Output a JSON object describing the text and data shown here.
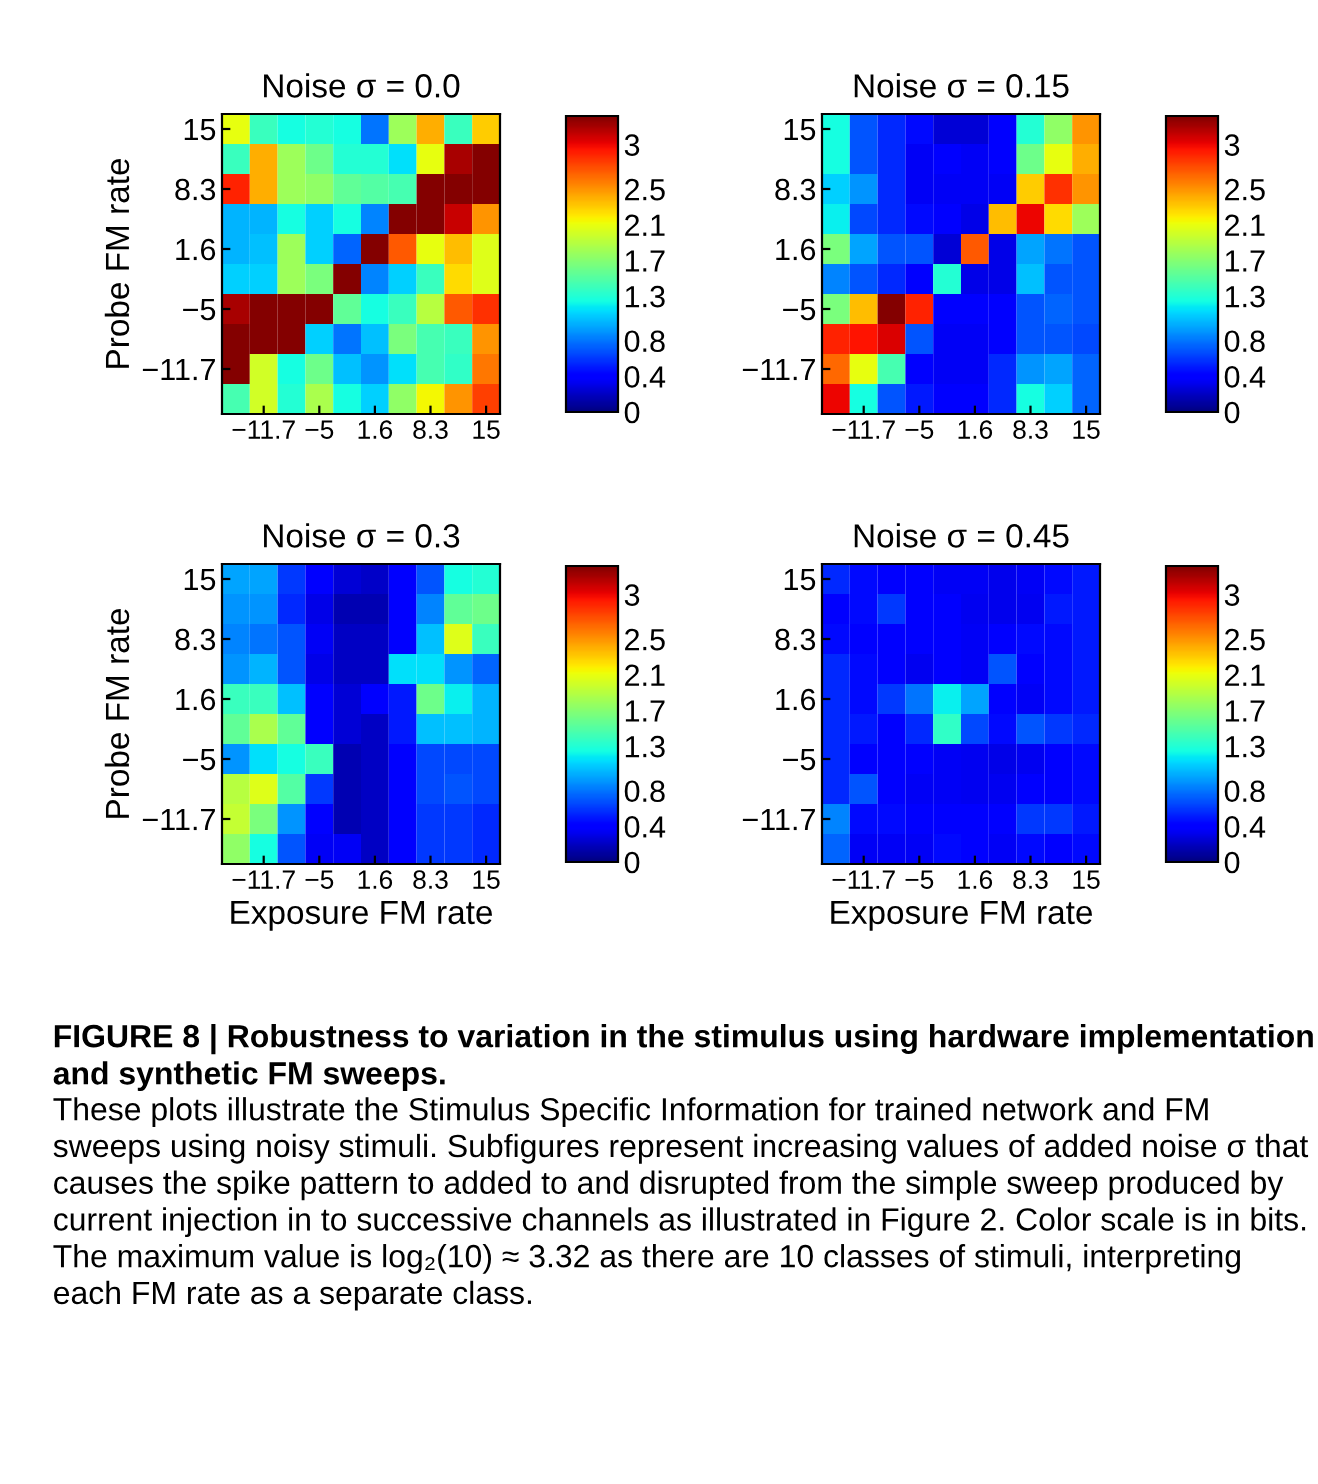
{
  "chart_data": [
    {
      "type": "heatmap",
      "title": "Noise σ = 0.0",
      "ylabel": "Probe FM rate",
      "categories": [
        null,
        "−11.7",
        null,
        "−5",
        null,
        "1.6",
        null,
        "8.3",
        null,
        "15"
      ],
      "y_categories": [
        "15",
        null,
        "8.3",
        null,
        "1.6",
        null,
        "−5",
        null,
        "−11.7",
        null
      ],
      "clim": [
        0,
        3.32
      ],
      "cticks": [
        0,
        0.4,
        0.8,
        1.3,
        1.7,
        2.1,
        2.5,
        3
      ],
      "cells": [
        [
          2.1,
          1.4,
          1.25,
          1.3,
          1.25,
          0.8,
          1.8,
          2.4,
          1.4,
          2.3
        ],
        [
          1.4,
          2.4,
          1.8,
          1.6,
          1.3,
          1.3,
          1.15,
          2.1,
          3.2,
          3.3
        ],
        [
          2.9,
          2.4,
          1.8,
          1.75,
          1.55,
          1.5,
          1.45,
          3.3,
          3.3,
          3.3
        ],
        [
          1.0,
          1.0,
          1.25,
          1.1,
          1.25,
          0.85,
          3.3,
          3.3,
          3.1,
          2.5
        ],
        [
          1.0,
          1.05,
          1.8,
          1.1,
          0.75,
          3.3,
          2.7,
          2.1,
          2.35,
          2.05
        ],
        [
          1.1,
          1.1,
          1.8,
          1.65,
          3.3,
          0.85,
          1.1,
          1.4,
          2.25,
          2.05
        ],
        [
          3.2,
          3.3,
          3.3,
          3.3,
          1.55,
          1.25,
          1.4,
          1.9,
          2.7,
          2.85
        ],
        [
          3.3,
          3.3,
          3.3,
          1.1,
          0.8,
          1.05,
          1.65,
          1.45,
          1.4,
          2.5
        ],
        [
          3.3,
          2.0,
          1.25,
          1.6,
          1.05,
          0.9,
          1.15,
          1.45,
          1.35,
          2.6
        ],
        [
          1.45,
          2.0,
          1.3,
          1.85,
          1.25,
          1.1,
          1.75,
          2.15,
          2.5,
          2.8
        ]
      ]
    },
    {
      "type": "heatmap",
      "title": "Noise σ = 0.15",
      "categories": [
        null,
        "−11.7",
        null,
        "−5",
        null,
        "1.6",
        null,
        "8.3",
        null,
        "15"
      ],
      "y_categories": [
        "15",
        null,
        "8.3",
        null,
        "1.6",
        null,
        "−5",
        null,
        "−11.7",
        null
      ],
      "clim": [
        0,
        3.32
      ],
      "cticks": [
        0,
        0.4,
        0.8,
        1.3,
        1.7,
        2.1,
        2.5,
        3
      ],
      "cells": [
        [
          1.25,
          0.7,
          0.55,
          0.45,
          0.25,
          0.25,
          0.4,
          1.3,
          1.75,
          2.5
        ],
        [
          1.25,
          0.7,
          0.55,
          0.35,
          0.4,
          0.35,
          0.38,
          1.6,
          2.1,
          2.4
        ],
        [
          1.1,
          0.9,
          0.55,
          0.35,
          0.35,
          0.35,
          0.35,
          2.3,
          2.85,
          2.5
        ],
        [
          1.2,
          0.65,
          0.55,
          0.45,
          0.38,
          0.3,
          2.35,
          3.0,
          2.25,
          1.8
        ],
        [
          1.65,
          0.95,
          0.7,
          0.7,
          0.25,
          2.7,
          0.3,
          0.95,
          0.8,
          0.7
        ],
        [
          0.85,
          0.7,
          0.55,
          0.4,
          1.3,
          0.3,
          0.3,
          1.05,
          0.7,
          0.7
        ],
        [
          1.65,
          2.35,
          3.3,
          2.9,
          0.38,
          0.38,
          0.4,
          0.7,
          0.75,
          0.7
        ],
        [
          2.9,
          2.95,
          3.05,
          0.7,
          0.35,
          0.35,
          0.38,
          0.7,
          0.7,
          0.65
        ],
        [
          2.65,
          2.1,
          1.45,
          0.4,
          0.35,
          0.35,
          0.55,
          0.9,
          0.95,
          0.75
        ],
        [
          3.0,
          1.25,
          0.7,
          0.5,
          0.4,
          0.38,
          0.55,
          1.25,
          1.1,
          0.75
        ]
      ]
    },
    {
      "type": "heatmap",
      "title": "Noise σ = 0.3",
      "xlabel": "Exposure FM rate",
      "ylabel": "Probe FM rate",
      "categories": [
        null,
        "−11.7",
        null,
        "−5",
        null,
        "1.6",
        null,
        "8.3",
        null,
        "15"
      ],
      "y_categories": [
        "15",
        null,
        "8.3",
        null,
        "1.6",
        null,
        "−5",
        null,
        "−11.7",
        null
      ],
      "clim": [
        0,
        3.32
      ],
      "cticks": [
        0,
        0.4,
        0.8,
        1.3,
        1.7,
        2.1,
        2.5,
        3
      ],
      "cells": [
        [
          0.95,
          0.95,
          0.6,
          0.4,
          0.25,
          0.22,
          0.4,
          0.7,
          1.25,
          1.3
        ],
        [
          0.9,
          0.9,
          0.55,
          0.3,
          0.15,
          0.15,
          0.4,
          0.85,
          1.55,
          1.6
        ],
        [
          0.85,
          0.8,
          0.7,
          0.35,
          0.2,
          0.2,
          0.4,
          1.05,
          2.05,
          1.4
        ],
        [
          0.9,
          1.0,
          0.7,
          0.3,
          0.2,
          0.2,
          1.15,
          1.15,
          0.9,
          0.75
        ],
        [
          1.4,
          1.4,
          1.05,
          0.4,
          0.25,
          0.4,
          0.5,
          1.6,
          1.2,
          1.0
        ],
        [
          1.55,
          1.85,
          1.55,
          0.4,
          0.25,
          0.2,
          0.5,
          1.05,
          1.05,
          1.0
        ],
        [
          0.9,
          1.15,
          1.25,
          1.4,
          0.15,
          0.2,
          0.4,
          0.65,
          0.65,
          0.65
        ],
        [
          1.9,
          2.05,
          1.5,
          0.6,
          0.15,
          0.2,
          0.4,
          0.65,
          0.7,
          0.65
        ],
        [
          1.95,
          1.65,
          0.9,
          0.4,
          0.15,
          0.2,
          0.4,
          0.6,
          0.6,
          0.55
        ],
        [
          1.75,
          1.25,
          0.7,
          0.35,
          0.35,
          0.2,
          0.4,
          0.6,
          0.6,
          0.55
        ]
      ]
    },
    {
      "type": "heatmap",
      "title": "Noise σ = 0.45",
      "xlabel": "Exposure FM rate",
      "categories": [
        null,
        "−11.7",
        null,
        "−5",
        null,
        "1.6",
        null,
        "8.3",
        null,
        "15"
      ],
      "y_categories": [
        "15",
        null,
        "8.3",
        null,
        "1.6",
        null,
        "−5",
        null,
        "−11.7",
        null
      ],
      "clim": [
        0,
        3.32
      ],
      "cticks": [
        0,
        0.4,
        0.8,
        1.3,
        1.7,
        2.1,
        2.5,
        3
      ],
      "cells": [
        [
          0.55,
          0.45,
          0.4,
          0.42,
          0.35,
          0.35,
          0.32,
          0.35,
          0.45,
          0.5
        ],
        [
          0.4,
          0.45,
          0.6,
          0.38,
          0.42,
          0.33,
          0.32,
          0.33,
          0.5,
          0.5
        ],
        [
          0.45,
          0.42,
          0.42,
          0.38,
          0.38,
          0.35,
          0.4,
          0.45,
          0.45,
          0.5
        ],
        [
          0.55,
          0.45,
          0.4,
          0.33,
          0.4,
          0.35,
          0.7,
          0.42,
          0.45,
          0.5
        ],
        [
          0.55,
          0.45,
          0.6,
          0.8,
          1.2,
          0.95,
          0.4,
          0.35,
          0.45,
          0.5
        ],
        [
          0.55,
          0.5,
          0.42,
          0.55,
          1.35,
          0.65,
          0.45,
          0.7,
          0.6,
          0.55
        ],
        [
          0.55,
          0.4,
          0.42,
          0.4,
          0.35,
          0.33,
          0.3,
          0.33,
          0.4,
          0.45
        ],
        [
          0.55,
          0.7,
          0.42,
          0.35,
          0.35,
          0.33,
          0.33,
          0.38,
          0.42,
          0.45
        ],
        [
          0.85,
          0.45,
          0.45,
          0.38,
          0.38,
          0.38,
          0.4,
          0.6,
          0.6,
          0.5
        ],
        [
          0.75,
          0.35,
          0.35,
          0.35,
          0.45,
          0.38,
          0.35,
          0.45,
          0.4,
          0.45
        ]
      ],
      "annotations": [
        "FIGURE 8 | Robustness to variation in the stimulus using hardware implementation and synthetic FM sweeps.",
        "These plots illustrate the Stimulus Specific Information for trained network and FM sweeps using noisy stimuli. Subfigures represent increasing values of added noise σ that causes the spike pattern to added to and disrupted from the simple sweep produced by current injection in to successive channels as illustrated in Figure 2. Color scale is in bits. The maximum value is log₂(10) ≈ 3.32 as there are 10 classes of stimuli, interpreting each FM rate as a separate class."
      ]
    }
  ]
}
